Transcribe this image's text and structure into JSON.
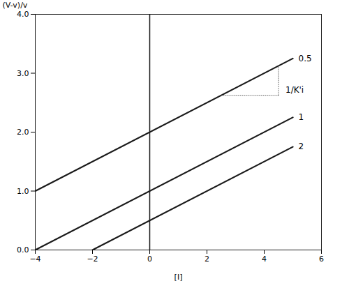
{
  "chart_data": {
    "type": "line",
    "title": "",
    "xlabel": "[I]",
    "ylabel": "(V-v)/v",
    "xlim": [
      -4,
      6
    ],
    "ylim": [
      0,
      4
    ],
    "xticks": [
      -4,
      -2,
      0,
      2,
      4,
      6
    ],
    "yticks": [
      0,
      1,
      2,
      3,
      4
    ],
    "series": [
      {
        "name": "0.5",
        "color": "#1a1a1a",
        "x": [
          -4.0,
          5.0
        ],
        "values": [
          1.0,
          3.25
        ]
      },
      {
        "name": "1",
        "color": "#1a1a1a",
        "x": [
          -4.0,
          5.0
        ],
        "values": [
          0.0,
          2.25
        ]
      },
      {
        "name": "2",
        "color": "#1a1a1a",
        "x": [
          -2.0,
          5.0
        ],
        "values": [
          0.0,
          1.75
        ]
      }
    ],
    "annotation": {
      "label": "1/K'i",
      "segments": [
        [
          [
            2.5,
            2.625
          ],
          [
            4.5,
            2.625
          ]
        ],
        [
          [
            4.5,
            2.625
          ],
          [
            4.5,
            3.125
          ]
        ]
      ]
    }
  }
}
